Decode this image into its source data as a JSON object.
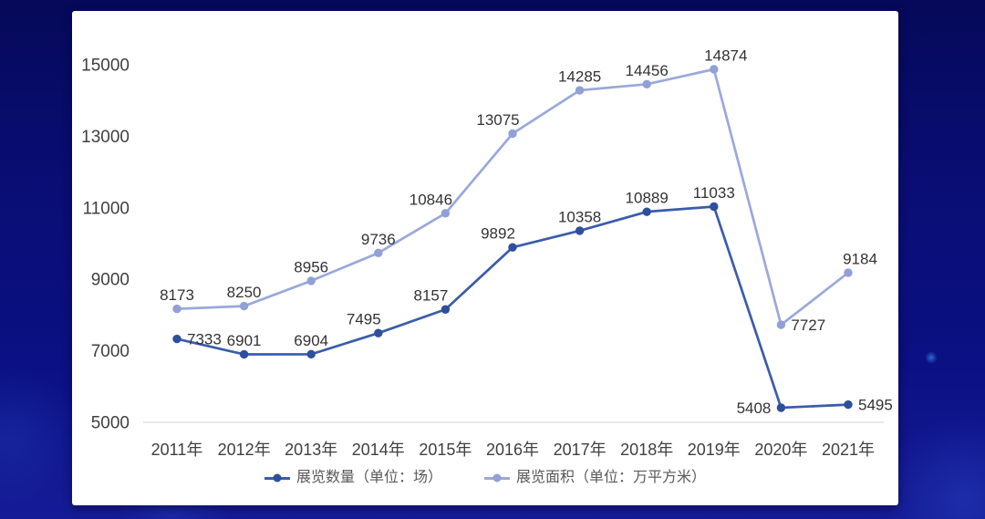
{
  "chart_data": {
    "type": "line",
    "title": "",
    "xlabel": "",
    "ylabel": "",
    "categories": [
      "2011年",
      "2012年",
      "2013年",
      "2014年",
      "2015年",
      "2016年",
      "2017年",
      "2018年",
      "2019年",
      "2020年",
      "2021年"
    ],
    "series": [
      {
        "name": "展览数量（单位：场）",
        "color": "#3a5caa",
        "marker_color": "#2e4f9c",
        "values": [
          7333,
          6901,
          6904,
          7495,
          8157,
          9892,
          10358,
          10889,
          11033,
          5408,
          5495
        ],
        "label_placements": [
          "right",
          "above",
          "above",
          "above-l",
          "above-l",
          "above-l",
          "above",
          "above",
          "above",
          "left",
          "right"
        ]
      },
      {
        "name": "展览面积（单位：万平方米）",
        "color": "#9aa8dc",
        "marker_color": "#91a0d6",
        "values": [
          8173,
          8250,
          8956,
          9736,
          10846,
          13075,
          14285,
          14456,
          14874,
          7727,
          9184
        ],
        "label_placements": [
          "above",
          "above",
          "above",
          "above",
          "above-l",
          "above-l",
          "above",
          "above",
          "above-r",
          "right",
          "above-r"
        ]
      }
    ],
    "y_ticks": [
      5000,
      7000,
      9000,
      11000,
      13000,
      15000
    ],
    "ylim": [
      5000,
      15500
    ],
    "grid": "off",
    "legend_position": "bottom"
  },
  "colors": {
    "background": "#0a0e7c",
    "card_bg": "#ffffff",
    "axis_line": "#d9d9d9",
    "tick_label": "#404040",
    "data_label": "#333333",
    "legend_text": "#595959"
  }
}
